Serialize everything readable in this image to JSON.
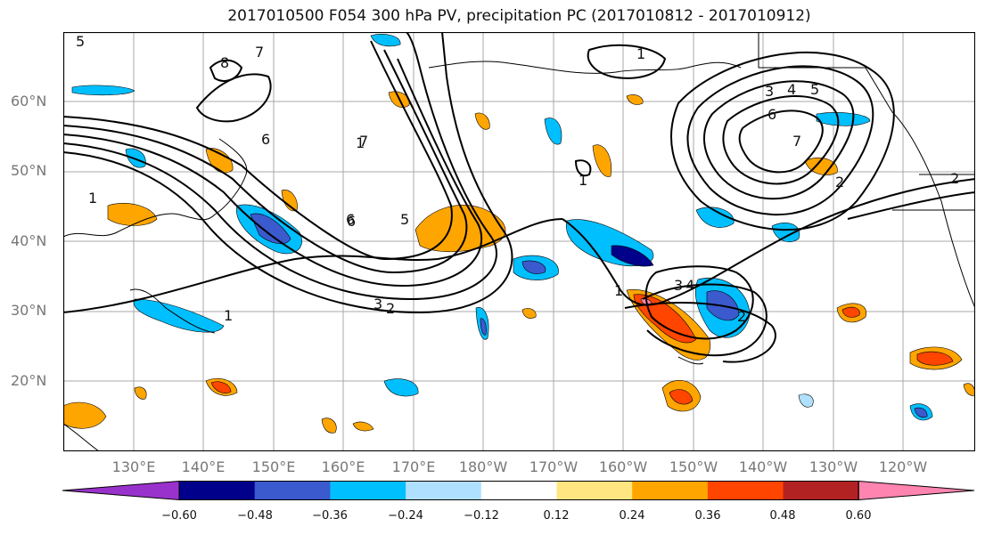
{
  "title": "2017010500 F054 300 hPa PV, precipitation PC (2017010812 - 2017010912)",
  "lat_labels": [
    "60°N",
    "50°N",
    "40°N",
    "30°N",
    "20°N"
  ],
  "lon_labels": [
    "130°E",
    "140°E",
    "150°E",
    "160°E",
    "170°E",
    "180°W",
    "170°W",
    "160°W",
    "150°W",
    "140°W",
    "130°W",
    "120°W"
  ],
  "colorbar": {
    "colors": [
      "#9932cc",
      "#00008b",
      "#3a5acd",
      "#00bfff",
      "#b0e0ff",
      "#ffffff",
      "#ffe680",
      "#ffa500",
      "#ff4500",
      "#b22222",
      "#ff85b0"
    ],
    "labels": [
      "−0.60",
      "−0.48",
      "−0.36",
      "−0.24",
      "−0.12",
      "0.12",
      "0.24",
      "0.36",
      "0.48",
      "0.60"
    ]
  },
  "contour_labels": [
    "5",
    "8",
    "7",
    "6",
    "1",
    "1",
    "6",
    "7",
    "6",
    "5",
    "3",
    "2",
    "1",
    "3",
    "4",
    "5",
    "6",
    "7",
    "2",
    "1",
    "3",
    "4",
    "2",
    "2",
    "1",
    "1"
  ]
}
